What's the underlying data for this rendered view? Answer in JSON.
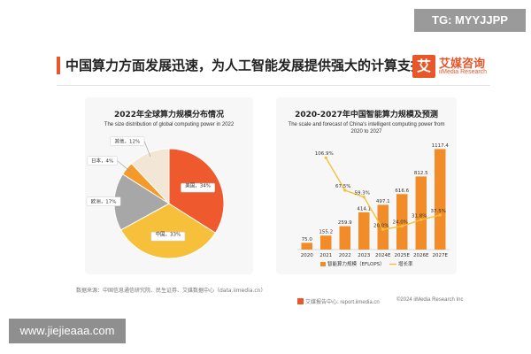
{
  "watermark_top": "TG: MYYJJPP",
  "watermark_bottom": "www.jiejieaaa.com",
  "headline": "中国算力方面发展迅速，为人工智能发展提供强大的计算支持",
  "logo": {
    "box": "艾",
    "cn": "艾媒咨询",
    "en": "iiMedia Research"
  },
  "source": "数据来源：中国信息通信研究院、民生证券、艾媒数据中心（data.iimedia.cn）",
  "footer": {
    "left": "艾媒报告中心: report.iimedia.cn",
    "right": "©2024 iiMedia Research Inc"
  },
  "colors": {
    "accent": "#e8562a",
    "orange": "#f28c28",
    "yellow": "#f6c03a",
    "gray": "#a7a7a7",
    "cream": "#f5eee2"
  },
  "chart_data": [
    {
      "type": "pie",
      "title": "2022年全球算力规模分布情况",
      "subtitle": "The size distribution of global computing power in 2022",
      "slices": [
        {
          "label": "美国",
          "value": 34,
          "text": "34%",
          "color": "#ee5a2d"
        },
        {
          "label": "中国",
          "value": 33,
          "text": "33%",
          "color": "#f6c03a"
        },
        {
          "label": "欧洲",
          "value": 17,
          "text": "17%",
          "color": "#a7a7a7"
        },
        {
          "label": "日本",
          "value": 4,
          "text": "4%",
          "color": "#f39a2b"
        },
        {
          "label": "其他",
          "value": 12,
          "text": "12%",
          "color": "#f2e7d6"
        }
      ]
    },
    {
      "type": "bar",
      "title": "2020-2027年中国智能算力规模及预测",
      "subtitle_1": "The scale and forecast of China's intelligent computing power from",
      "subtitle_2": "2020 to 2027",
      "categories": [
        "2020",
        "2021",
        "2022",
        "2023",
        "2024E",
        "2025E",
        "2026E",
        "2027E"
      ],
      "ylim": [
        0,
        1200
      ],
      "series": [
        {
          "name": "智能算力规模（EFLOPS）",
          "kind": "bar",
          "values": [
            75.0,
            155.2,
            259.9,
            414.1,
            497.1,
            616.6,
            812.5,
            1117.4
          ],
          "labels": [
            "75.0",
            "155.2",
            "259.9",
            "414.1",
            "497.1",
            "616.6",
            "812.5",
            "1117.4"
          ]
        },
        {
          "name": "增长率",
          "kind": "line",
          "values": [
            null,
            106.9,
            67.5,
            59.3,
            20.0,
            24.0,
            31.8,
            37.5
          ],
          "labels": [
            "",
            "106.9%",
            "67.5%",
            "59.3%",
            "20.0%",
            "24.0%",
            "31.8%",
            "37.5%"
          ]
        }
      ]
    }
  ]
}
